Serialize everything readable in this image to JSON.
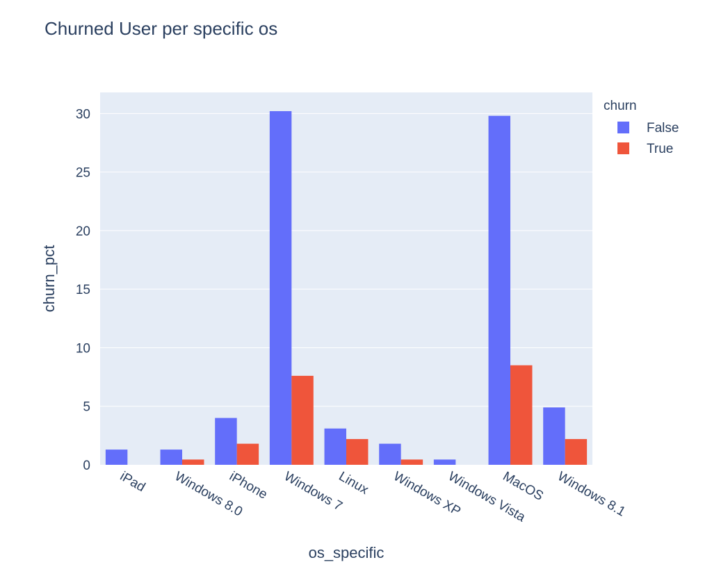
{
  "chart_data": {
    "type": "bar",
    "title": "Churned User per specific os",
    "xlabel": "os_specific",
    "ylabel": "churn_pct",
    "categories": [
      "iPad",
      "Windows 8.0",
      "iPhone",
      "Windows 7",
      "Linux",
      "Windows XP",
      "Windows Vista",
      "MacOS",
      "Windows 8.1"
    ],
    "series": [
      {
        "name": "False",
        "color": "#636efa",
        "values": [
          1.3,
          1.3,
          4.0,
          30.2,
          3.1,
          1.8,
          0.45,
          29.8,
          4.9
        ]
      },
      {
        "name": "True",
        "color": "#ef553b",
        "values": [
          0,
          0.45,
          1.8,
          7.6,
          2.2,
          0.45,
          0,
          8.5,
          2.2
        ]
      }
    ],
    "ylim": [
      0,
      31.8
    ],
    "yticks": [
      0,
      5,
      10,
      15,
      20,
      25,
      30
    ],
    "legend": {
      "title": "churn",
      "placement": "top-right"
    },
    "grid": true,
    "plot_background": "#e5ecf6"
  }
}
